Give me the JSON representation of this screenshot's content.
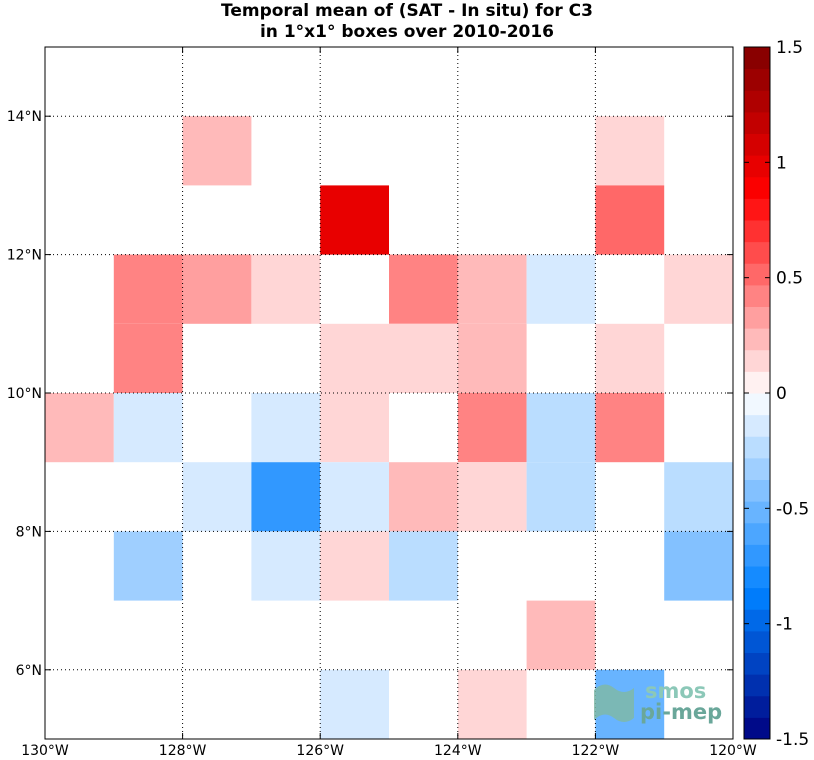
{
  "chart_data": {
    "type": "heatmap",
    "title_line1": "Temporal mean of (SAT - In situ) for C3",
    "title_line2": "in 1°x1° boxes over 2010-2016",
    "xlim": [
      -130,
      -120
    ],
    "ylim": [
      5,
      15
    ],
    "x_ticks": [
      {
        "value": -130,
        "label": "130°W"
      },
      {
        "value": -128,
        "label": "128°W"
      },
      {
        "value": -126,
        "label": "126°W"
      },
      {
        "value": -124,
        "label": "124°W"
      },
      {
        "value": -122,
        "label": "122°W"
      },
      {
        "value": -120,
        "label": "120°W"
      }
    ],
    "y_ticks": [
      {
        "value": 6,
        "label": "6°N"
      },
      {
        "value": 8,
        "label": "8°N"
      },
      {
        "value": 10,
        "label": "10°N"
      },
      {
        "value": 12,
        "label": "12°N"
      },
      {
        "value": 14,
        "label": "14°N"
      }
    ],
    "grid": true,
    "grid_style": "dotted",
    "colorbar": {
      "clim": [
        -1.5,
        1.5
      ],
      "levels": 32,
      "placement": "right",
      "ticks": [
        {
          "value": 1.5,
          "label": "1.5"
        },
        {
          "value": 1,
          "label": "1"
        },
        {
          "value": 0.5,
          "label": "0.5"
        },
        {
          "value": 0,
          "label": "0"
        },
        {
          "value": -0.5,
          "label": "-0.5"
        },
        {
          "value": -1,
          "label": "-1"
        },
        {
          "value": -1.5,
          "label": "-1.5"
        }
      ]
    },
    "cells": [
      {
        "lon": -128,
        "lat": 13,
        "value": 0.27
      },
      {
        "lon": -122,
        "lat": 13,
        "value": 0.17
      },
      {
        "lon": -126,
        "lat": 12,
        "value": 0.97
      },
      {
        "lon": -122,
        "lat": 12,
        "value": 0.52
      },
      {
        "lon": -129,
        "lat": 11,
        "value": 0.39
      },
      {
        "lon": -128,
        "lat": 11,
        "value": 0.3
      },
      {
        "lon": -127,
        "lat": 11,
        "value": 0.17
      },
      {
        "lon": -125,
        "lat": 11,
        "value": 0.39
      },
      {
        "lon": -124,
        "lat": 11,
        "value": 0.27
      },
      {
        "lon": -123,
        "lat": 11,
        "value": -0.12
      },
      {
        "lon": -121,
        "lat": 11,
        "value": 0.17
      },
      {
        "lon": -129,
        "lat": 10,
        "value": 0.39
      },
      {
        "lon": -126,
        "lat": 10,
        "value": 0.17
      },
      {
        "lon": -125,
        "lat": 10,
        "value": 0.17
      },
      {
        "lon": -124,
        "lat": 10,
        "value": 0.27
      },
      {
        "lon": -122,
        "lat": 10,
        "value": 0.17
      },
      {
        "lon": -130,
        "lat": 9,
        "value": 0.27
      },
      {
        "lon": -129,
        "lat": 9,
        "value": -0.12
      },
      {
        "lon": -127,
        "lat": 9,
        "value": -0.12
      },
      {
        "lon": -126,
        "lat": 9,
        "value": 0.17
      },
      {
        "lon": -124,
        "lat": 9,
        "value": 0.39
      },
      {
        "lon": -123,
        "lat": 9,
        "value": -0.22
      },
      {
        "lon": -122,
        "lat": 9,
        "value": 0.39
      },
      {
        "lon": -128,
        "lat": 8,
        "value": -0.12
      },
      {
        "lon": -127,
        "lat": 8,
        "value": -0.72
      },
      {
        "lon": -126,
        "lat": 8,
        "value": -0.12
      },
      {
        "lon": -125,
        "lat": 8,
        "value": 0.27
      },
      {
        "lon": -124,
        "lat": 8,
        "value": 0.17
      },
      {
        "lon": -123,
        "lat": 8,
        "value": -0.22
      },
      {
        "lon": -121,
        "lat": 8,
        "value": -0.22
      },
      {
        "lon": -129,
        "lat": 7,
        "value": -0.33
      },
      {
        "lon": -127,
        "lat": 7,
        "value": -0.12
      },
      {
        "lon": -126,
        "lat": 7,
        "value": 0.17
      },
      {
        "lon": -125,
        "lat": 7,
        "value": -0.22
      },
      {
        "lon": -121,
        "lat": 7,
        "value": -0.43
      },
      {
        "lon": -123,
        "lat": 6,
        "value": 0.27
      },
      {
        "lon": -126,
        "lat": 5,
        "value": -0.12
      },
      {
        "lon": -124,
        "lat": 5,
        "value": 0.17
      },
      {
        "lon": -122,
        "lat": 5,
        "value": -0.52
      }
    ]
  },
  "logo": {
    "line1": "smos",
    "line2": "pi-mep"
  }
}
